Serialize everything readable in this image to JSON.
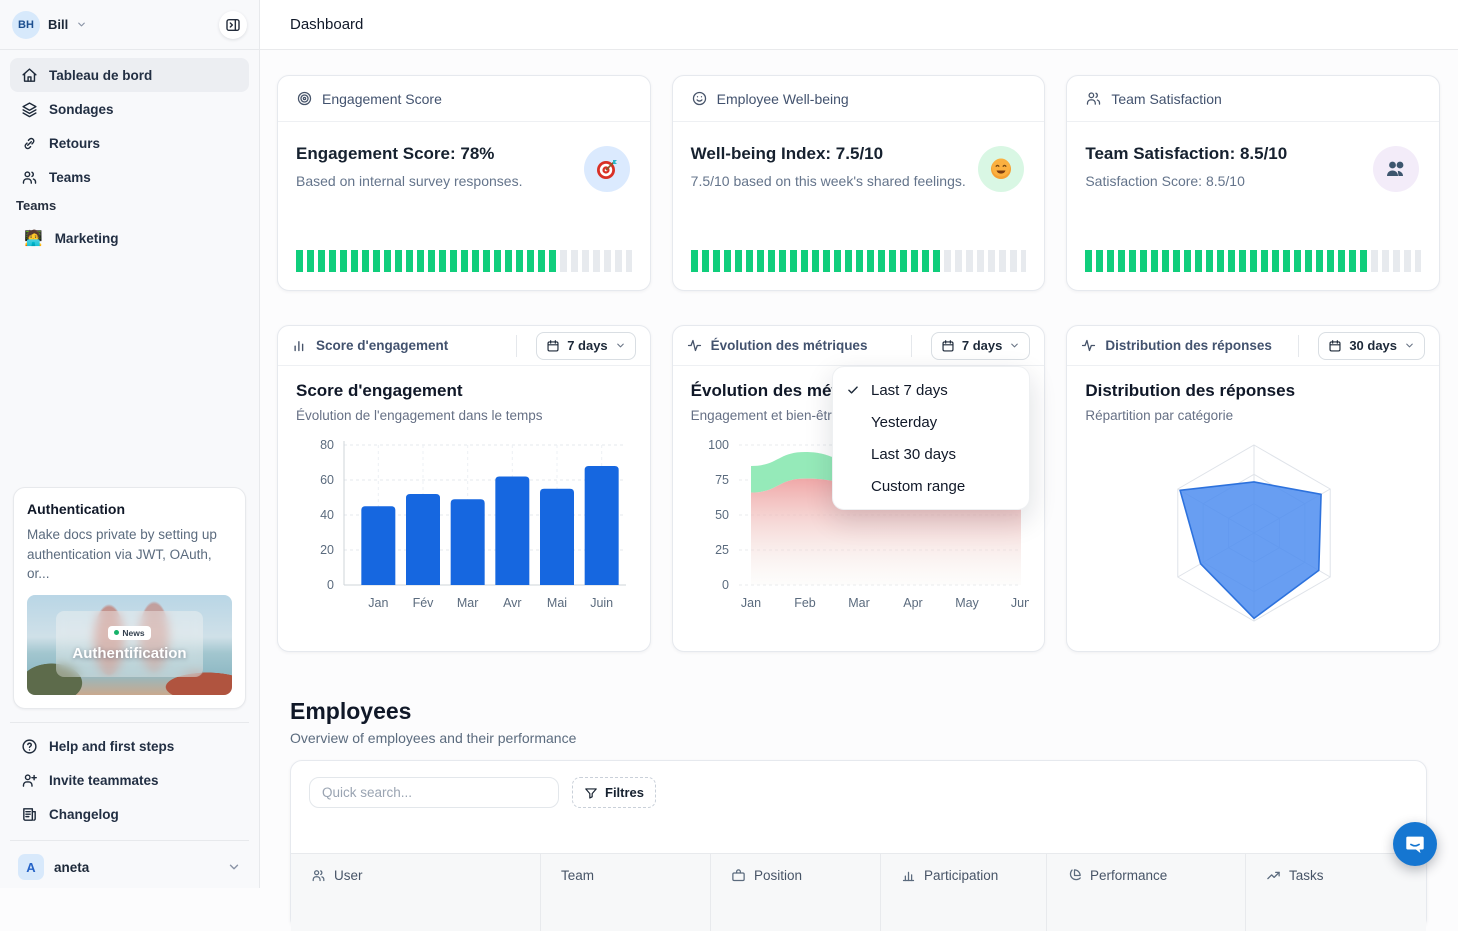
{
  "sidebar": {
    "user": {
      "initials": "BH",
      "name": "Bill"
    },
    "nav": [
      {
        "label": "Tableau de bord",
        "icon": "home-icon",
        "active": true
      },
      {
        "label": "Sondages",
        "icon": "layers-icon"
      },
      {
        "label": "Retours",
        "icon": "link-icon"
      },
      {
        "label": "Teams",
        "icon": "users-icon"
      }
    ],
    "section_label": "Teams",
    "teams": [
      {
        "emoji": "🧑‍💻",
        "label": "Marketing"
      }
    ],
    "promo": {
      "title": "Authentication",
      "body": "Make docs private by setting up authentication via JWT, OAuth, or...",
      "badge": "News",
      "image_caption": "Authentification"
    },
    "footer_nav": [
      {
        "label": "Help and first steps",
        "icon": "help-circle-icon"
      },
      {
        "label": "Invite teammates",
        "icon": "user-plus-icon"
      },
      {
        "label": "Changelog",
        "icon": "changelog-icon"
      }
    ],
    "workspace": {
      "initial": "A",
      "name": "aneta"
    }
  },
  "header": {
    "title": "Dashboard"
  },
  "stat_cards": [
    {
      "header": "Engagement Score",
      "header_icon": "target-icon",
      "title": "Engagement Score: 78%",
      "subtitle": "Based on internal survey responses.",
      "progress_percent": 78,
      "badge_icon": "dart-target-emoji",
      "badge_bg": "#dbeafe"
    },
    {
      "header": "Employee Well-being",
      "header_icon": "smiley-icon",
      "title": "Well-being Index: 7.5/10",
      "subtitle": "7.5/10 based on this week's shared feelings.",
      "progress_percent": 75,
      "badge_icon": "smiling-face-emoji",
      "badge_bg": "#d9f7e4"
    },
    {
      "header": "Team Satisfaction",
      "header_icon": "users-icon",
      "title": "Team Satisfaction: 8.5/10",
      "subtitle": "Satisfaction Score: 8.5/10",
      "progress_percent": 85,
      "badge_icon": "two-people-emoji",
      "badge_bg": "#f3ecf9"
    }
  ],
  "chart_cards": [
    {
      "header": "Score d'engagement",
      "header_icon": "bar-chart-icon",
      "range_label": "7 days"
    },
    {
      "header": "Évolution des métriques",
      "header_icon": "activity-icon",
      "range_label": "7 days"
    },
    {
      "header": "Distribution des réponses",
      "header_icon": "activity-icon",
      "range_label": "30 days"
    }
  ],
  "dropdown_menu": {
    "items": [
      {
        "label": "Last 7 days",
        "checked": true
      },
      {
        "label": "Yesterday",
        "checked": false
      },
      {
        "label": "Last 30 days",
        "checked": false
      },
      {
        "label": "Custom range",
        "checked": false
      }
    ]
  },
  "chart_data": [
    {
      "type": "bar",
      "title": "Score d'engagement",
      "subtitle": "Évolution de l'engagement dans le temps",
      "categories": [
        "Jan",
        "Fév",
        "Mar",
        "Avr",
        "Mai",
        "Juin"
      ],
      "values": [
        45,
        52,
        49,
        62,
        55,
        68
      ],
      "ylim": [
        0,
        80
      ],
      "yticks": [
        0,
        20,
        40,
        60,
        80
      ],
      "bar_color": "#1667e0",
      "grid": true
    },
    {
      "type": "area",
      "title": "Évolution des métriques",
      "subtitle": "Engagement et bien-être",
      "categories": [
        "Jan",
        "Feb",
        "Mar",
        "Apr",
        "May",
        "Jun"
      ],
      "series": [
        {
          "name": "engagement",
          "color": "#8fe9b5",
          "values": [
            85,
            95,
            88,
            63,
            72,
            88
          ]
        },
        {
          "name": "bien-être",
          "color": "#efa3a3",
          "values": [
            66,
            76,
            73,
            58,
            63,
            70
          ]
        }
      ],
      "ylim": [
        0,
        100
      ],
      "yticks": [
        0,
        25,
        50,
        75,
        100
      ],
      "grid": true
    },
    {
      "type": "radar",
      "title": "Distribution des réponses",
      "subtitle": "Répartition par catégorie",
      "axes_count": 6,
      "values_fraction": [
        0.58,
        0.88,
        0.85,
        0.97,
        0.7,
        0.97
      ],
      "max": 1,
      "fill_color": "#4e8df0",
      "stroke_color": "#2d72dd"
    }
  ],
  "employees": {
    "title": "Employees",
    "subtitle": "Overview of employees and their performance",
    "search_placeholder": "Quick search...",
    "filter_label": "Filtres",
    "columns": [
      {
        "label": "User",
        "icon": "users-icon"
      },
      {
        "label": "Team",
        "icon": ""
      },
      {
        "label": "Position",
        "icon": "briefcase-icon"
      },
      {
        "label": "Participation",
        "icon": "bar-chart-icon"
      },
      {
        "label": "Performance",
        "icon": "pie-chart-icon"
      },
      {
        "label": "Tasks",
        "icon": "trend-up-icon"
      }
    ]
  },
  "colors": {
    "progress_green": "#10ce7c",
    "bar_blue": "#1667e0",
    "area_green": "#8fe9b5",
    "area_pink": "#efa3a3",
    "radar_blue": "#4e8df0",
    "intercom_blue": "#1576d1"
  }
}
